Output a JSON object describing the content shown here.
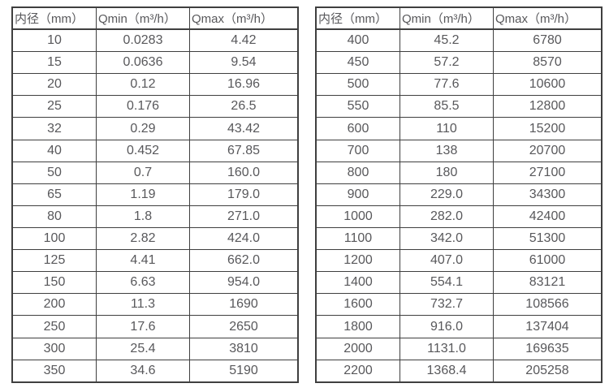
{
  "colors": {
    "background": "#ffffff",
    "table_border": "#3f3f3f",
    "text": "#58585b"
  },
  "chart_data": [
    {
      "type": "table",
      "name": "flow-rate-table-small-diameters",
      "columns": [
        "内径（mm）",
        "Qmin（m³/h）",
        "Qmax（m³/h）"
      ],
      "rows": [
        [
          "10",
          "0.0283",
          "4.42"
        ],
        [
          "15",
          "0.0636",
          "9.54"
        ],
        [
          "20",
          "0.12",
          "16.96"
        ],
        [
          "25",
          "0.176",
          "26.5"
        ],
        [
          "32",
          "0.29",
          "43.42"
        ],
        [
          "40",
          "0.452",
          "67.85"
        ],
        [
          "50",
          "0.7",
          "160.0"
        ],
        [
          "65",
          "1.19",
          "179.0"
        ],
        [
          "80",
          "1.8",
          "271.0"
        ],
        [
          "100",
          "2.82",
          "424.0"
        ],
        [
          "125",
          "4.41",
          "662.0"
        ],
        [
          "150",
          "6.63",
          "954.0"
        ],
        [
          "200",
          "11.3",
          "1690"
        ],
        [
          "250",
          "17.6",
          "2650"
        ],
        [
          "300",
          "25.4",
          "3810"
        ],
        [
          "350",
          "34.6",
          "5190"
        ]
      ]
    },
    {
      "type": "table",
      "name": "flow-rate-table-large-diameters",
      "columns": [
        "内径（mm）",
        "Qmin（m³/h）",
        "Qmax（m³/h）"
      ],
      "rows": [
        [
          "400",
          "45.2",
          "6780"
        ],
        [
          "450",
          "57.2",
          "8570"
        ],
        [
          "500",
          "77.6",
          "10600"
        ],
        [
          "550",
          "85.5",
          "12800"
        ],
        [
          "600",
          "110",
          "15200"
        ],
        [
          "700",
          "138",
          "20700"
        ],
        [
          "800",
          "180",
          "27100"
        ],
        [
          "900",
          "229.0",
          "34300"
        ],
        [
          "1000",
          "282.0",
          "42400"
        ],
        [
          "1100",
          "342.0",
          "51300"
        ],
        [
          "1200",
          "407.0",
          "61000"
        ],
        [
          "1400",
          "554.1",
          "83121"
        ],
        [
          "1600",
          "732.7",
          "108566"
        ],
        [
          "1800",
          "916.0",
          "137404"
        ],
        [
          "2000",
          "1131.0",
          "169635"
        ],
        [
          "2200",
          "1368.4",
          "205258"
        ]
      ]
    }
  ]
}
